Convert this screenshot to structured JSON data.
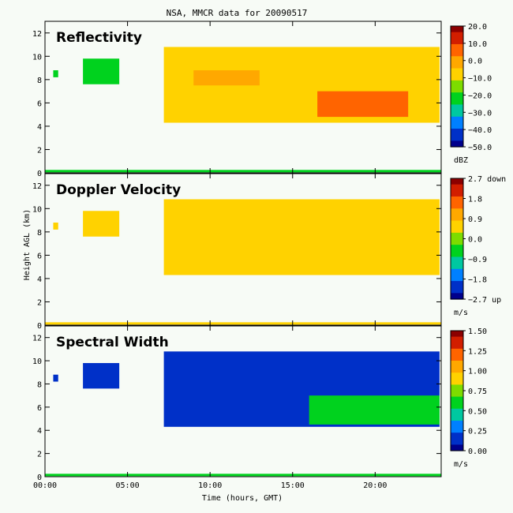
{
  "title": "NSA, MMCR data for 20090517",
  "xlabel": "Time (hours, GMT)",
  "ylabel": "Height AGL (km)",
  "colors": {
    "background": "#f7fbf6",
    "scale": [
      "#00008c",
      "#0030c8",
      "#0080ff",
      "#00c8a0",
      "#00d21e",
      "#7ddc00",
      "#ffd200",
      "#ffa800",
      "#ff6400",
      "#d21e00",
      "#8c0000"
    ]
  },
  "chart_data": [
    {
      "type": "heatmap",
      "title": "Reflectivity",
      "x_ticks": [
        "00:00",
        "05:00",
        "10:00",
        "15:00",
        "20:00"
      ],
      "x_tick_values": [
        0,
        5,
        10,
        15,
        20
      ],
      "xlim": [
        0,
        24
      ],
      "y_ticks": [
        "0",
        "2",
        "4",
        "6",
        "8",
        "10",
        "12"
      ],
      "ylim": [
        0,
        13
      ],
      "colorbar": {
        "labels": [
          "20.0",
          "10.0",
          "0.0",
          "−10.0",
          "−20.0",
          "−30.0",
          "−40.0",
          "−50.0"
        ],
        "unit": "dBZ",
        "range": [
          -50,
          20
        ]
      },
      "regions": [
        {
          "t0": 0.5,
          "t1": 0.8,
          "h_bottom": 8.2,
          "h_top": 8.8,
          "value_frac": 0.35
        },
        {
          "t0": 2.3,
          "t1": 4.5,
          "h_bottom": 7.6,
          "h_top": 9.8,
          "value_frac": 0.42
        },
        {
          "t0": 7.2,
          "t1": 23.9,
          "h_bottom": 4.3,
          "h_top": 10.8,
          "value_frac": 0.6
        },
        {
          "t0": 16.5,
          "t1": 22.0,
          "h_bottom": 4.8,
          "h_top": 7.0,
          "value_frac": 0.82
        },
        {
          "t0": 9.0,
          "t1": 13.0,
          "h_bottom": 7.5,
          "h_top": 8.8,
          "value_frac": 0.68
        }
      ]
    },
    {
      "type": "heatmap",
      "title": "Doppler Velocity",
      "x_ticks": [
        "00:00",
        "05:00",
        "10:00",
        "15:00",
        "20:00"
      ],
      "x_tick_values": [
        0,
        5,
        10,
        15,
        20
      ],
      "xlim": [
        0,
        24
      ],
      "y_ticks": [
        "0",
        "2",
        "4",
        "6",
        "8",
        "10",
        "12"
      ],
      "ylim": [
        0,
        13
      ],
      "colorbar": {
        "labels": [
          "2.7 down",
          "1.8",
          "0.9",
          "0.0",
          "−0.9",
          "−1.8",
          "−2.7 up"
        ],
        "unit": "m/s",
        "range": [
          -2.7,
          2.7
        ]
      },
      "regions": [
        {
          "t0": 0.5,
          "t1": 0.8,
          "h_bottom": 8.2,
          "h_top": 8.8,
          "value_frac": 0.62
        },
        {
          "t0": 2.3,
          "t1": 4.5,
          "h_bottom": 7.6,
          "h_top": 9.8,
          "value_frac": 0.62
        },
        {
          "t0": 7.2,
          "t1": 23.9,
          "h_bottom": 4.3,
          "h_top": 10.8,
          "value_frac": 0.62
        }
      ]
    },
    {
      "type": "heatmap",
      "title": "Spectral Width",
      "x_ticks": [
        "00:00",
        "05:00",
        "10:00",
        "15:00",
        "20:00"
      ],
      "x_tick_values": [
        0,
        5,
        10,
        15,
        20
      ],
      "xlim": [
        0,
        24
      ],
      "y_ticks": [
        "0",
        "2",
        "4",
        "6",
        "8",
        "10",
        "12"
      ],
      "ylim": [
        0,
        13
      ],
      "colorbar": {
        "labels": [
          "1.50",
          "1.25",
          "1.00",
          "0.75",
          "0.50",
          "0.25",
          "0.00"
        ],
        "unit": "m/s",
        "range": [
          0,
          1.5
        ]
      },
      "regions": [
        {
          "t0": 0.5,
          "t1": 0.8,
          "h_bottom": 8.2,
          "h_top": 8.8,
          "value_frac": 0.1
        },
        {
          "t0": 2.3,
          "t1": 4.5,
          "h_bottom": 7.6,
          "h_top": 9.8,
          "value_frac": 0.1
        },
        {
          "t0": 7.2,
          "t1": 23.9,
          "h_bottom": 4.3,
          "h_top": 10.8,
          "value_frac": 0.12
        },
        {
          "t0": 16.0,
          "t1": 23.9,
          "h_bottom": 4.5,
          "h_top": 7.0,
          "value_frac": 0.35
        }
      ]
    }
  ]
}
